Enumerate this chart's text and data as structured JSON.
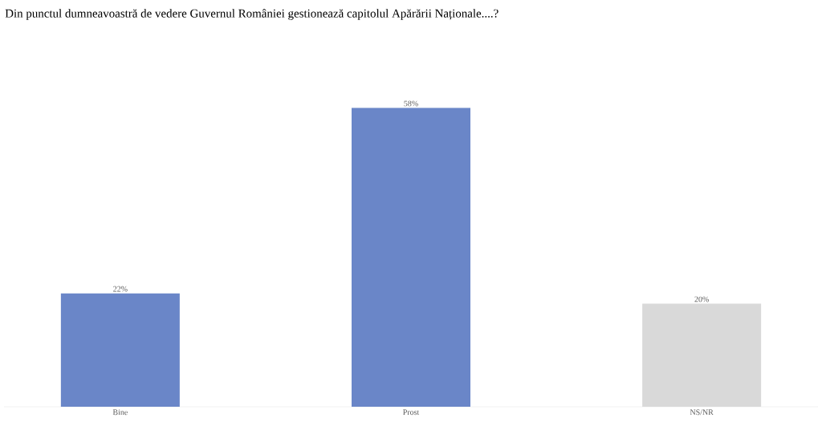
{
  "chart_data": {
    "type": "bar",
    "title": "Din punctul dumneavoastră de vedere Guvernul României gestionează capitolul Apărării Naționale....?",
    "categories": [
      "Bine",
      "Prost",
      "NS/NR"
    ],
    "values": [
      22,
      58,
      20
    ],
    "value_labels": [
      "22%",
      "58%",
      "20%"
    ],
    "colors": [
      "#6a86c8",
      "#6a86c8",
      "#d9d9d9"
    ]
  }
}
